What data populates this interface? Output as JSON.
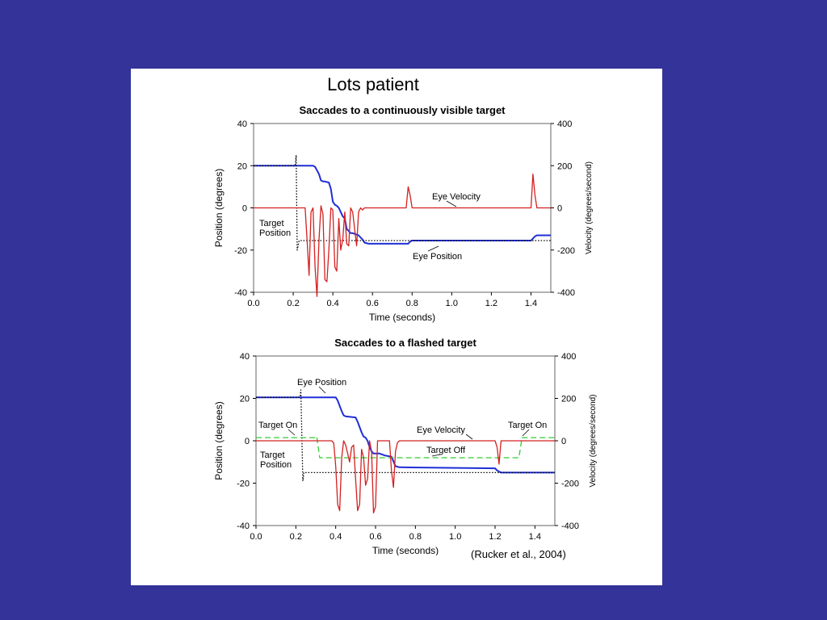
{
  "slide": {
    "title": "Lots patient",
    "citation": "(Rucker et al., 2004)"
  },
  "chart_data": [
    {
      "type": "line",
      "title": "Saccades to a continuously visible target",
      "xlabel": "Time (seconds)",
      "ylabel": "Position (degrees)",
      "y2label": "Velocity (degrees/second)",
      "xlim": [
        0.0,
        1.5
      ],
      "ylim": [
        -40,
        40
      ],
      "y2lim": [
        -400,
        400
      ],
      "xticks": [
        "0.0",
        "0.2",
        "0.4",
        "0.6",
        "0.8",
        "1.0",
        "1.2",
        "1.4"
      ],
      "yticks": [
        "-40",
        "-20",
        "0",
        "20",
        "40"
      ],
      "y2ticks": [
        "-400",
        "-200",
        "0",
        "200",
        "400"
      ],
      "grid": false,
      "series": [
        {
          "name": "Eye Position",
          "color": "#1f2ed6",
          "style": "solid",
          "axis": "left",
          "x": [
            0,
            0.3,
            0.31,
            0.33,
            0.34,
            0.35,
            0.36,
            0.38,
            0.39,
            0.4,
            0.41,
            0.42,
            0.43,
            0.44,
            0.45,
            0.46,
            0.47,
            0.48,
            0.49,
            0.5,
            0.53,
            0.55,
            0.56,
            0.58,
            0.78,
            0.79,
            0.8,
            1.4,
            1.42,
            1.43,
            1.5
          ],
          "y": [
            20,
            20,
            19.5,
            16,
            13,
            12.5,
            12.5,
            12,
            9,
            3,
            1.5,
            1,
            0,
            -2,
            -4,
            -5,
            -10,
            -11,
            -12,
            -12,
            -13,
            -15,
            -16.5,
            -17,
            -17,
            -16,
            -15.5,
            -15.5,
            -13.5,
            -13,
            -13
          ]
        },
        {
          "name": "Target Position",
          "color": "#000000",
          "style": "dotted",
          "axis": "left",
          "x": [
            0,
            0.21,
            0.215,
            0.22,
            0.23,
            1.5
          ],
          "y": [
            20,
            20,
            25,
            -20,
            -15.5,
            -15.5
          ]
        },
        {
          "name": "Eye Velocity",
          "color": "#d42020",
          "style": "solid",
          "axis": "right",
          "x": [
            0,
            0.22,
            0.26,
            0.27,
            0.28,
            0.29,
            0.3,
            0.31,
            0.32,
            0.33,
            0.34,
            0.35,
            0.36,
            0.37,
            0.38,
            0.39,
            0.4,
            0.41,
            0.42,
            0.43,
            0.44,
            0.45,
            0.46,
            0.47,
            0.48,
            0.49,
            0.5,
            0.51,
            0.52,
            0.53,
            0.54,
            0.55,
            0.56,
            0.57,
            0.77,
            0.78,
            0.79,
            0.8,
            1.4,
            1.41,
            1.42,
            1.43,
            1.5
          ],
          "y": [
            0,
            0,
            0,
            -150,
            -320,
            -20,
            0,
            -280,
            -420,
            -150,
            10,
            -30,
            -340,
            -350,
            -200,
            0,
            -10,
            -280,
            -300,
            -50,
            -200,
            -150,
            -20,
            -170,
            -180,
            0,
            -20,
            -100,
            -180,
            -20,
            0,
            -10,
            0,
            0,
            0,
            100,
            60,
            0,
            0,
            160,
            60,
            0,
            0
          ]
        }
      ],
      "annotations": [
        "Eye Velocity",
        "Target",
        "Position",
        "Eye Position"
      ]
    },
    {
      "type": "line",
      "title": "Saccades to a flashed target",
      "xlabel": "Time (seconds)",
      "ylabel": "Position (degrees)",
      "y2label": "Velocity (degrees/second)",
      "xlim": [
        0.0,
        1.5
      ],
      "ylim": [
        -40,
        40
      ],
      "y2lim": [
        -400,
        400
      ],
      "xticks": [
        "0.0",
        "0.2",
        "0.4",
        "0.6",
        "0.8",
        "1.0",
        "1.2",
        "1.4"
      ],
      "yticks": [
        "-40",
        "-20",
        "0",
        "20",
        "40"
      ],
      "y2ticks": [
        "-400",
        "-200",
        "0",
        "200",
        "400"
      ],
      "grid": false,
      "series": [
        {
          "name": "Eye Position",
          "color": "#1f2ed6",
          "style": "solid",
          "axis": "left",
          "x": [
            0,
            0.4,
            0.41,
            0.43,
            0.44,
            0.45,
            0.5,
            0.51,
            0.53,
            0.54,
            0.55,
            0.56,
            0.57,
            0.58,
            0.59,
            0.62,
            0.65,
            0.68,
            0.7,
            0.72,
            1.2,
            1.21,
            1.23,
            1.5
          ],
          "y": [
            20.5,
            20.5,
            19,
            14,
            12,
            11.5,
            11,
            9,
            4,
            2,
            1.5,
            0,
            -3,
            -5,
            -6,
            -6,
            -7,
            -7.5,
            -12,
            -12.5,
            -13,
            -14,
            -15,
            -15
          ]
        },
        {
          "name": "Target Position",
          "color": "#000000",
          "style": "dotted",
          "axis": "left",
          "x": [
            0,
            0.22,
            0.225,
            0.235,
            0.24,
            1.5
          ],
          "y": [
            20.5,
            20.5,
            24,
            -19,
            -15,
            -15
          ]
        },
        {
          "name": "Target",
          "color": "#33cc33",
          "style": "dashed",
          "axis": "left",
          "x": [
            0,
            0.3,
            0.305,
            0.32,
            0.33,
            1.32,
            1.335,
            1.34,
            1.5
          ],
          "y": [
            1.5,
            1.5,
            2,
            -8,
            -8,
            -8,
            1.5,
            1.5,
            1.5
          ]
        },
        {
          "name": "Eye Velocity",
          "color": "#d42020",
          "style": "solid",
          "axis": "right",
          "x": [
            0,
            0.38,
            0.39,
            0.4,
            0.41,
            0.42,
            0.43,
            0.44,
            0.45,
            0.46,
            0.47,
            0.48,
            0.49,
            0.5,
            0.51,
            0.52,
            0.53,
            0.54,
            0.55,
            0.56,
            0.57,
            0.58,
            0.59,
            0.6,
            0.61,
            0.67,
            0.68,
            0.69,
            0.7,
            0.71,
            0.72,
            1.2,
            1.21,
            1.22,
            1.23,
            1.5
          ],
          "y": [
            0,
            0,
            -10,
            -120,
            -300,
            -330,
            -80,
            0,
            -20,
            -60,
            -100,
            -30,
            -20,
            -180,
            -330,
            -300,
            -40,
            -80,
            -210,
            -180,
            0,
            -50,
            -340,
            -310,
            0,
            0,
            -140,
            -220,
            -50,
            -10,
            0,
            0,
            -30,
            -110,
            0,
            0
          ]
        }
      ],
      "annotations": [
        "Eye Position",
        "Target On",
        "Eye Velocity",
        "Target Off",
        "Target On",
        "Target",
        "Position"
      ]
    }
  ]
}
